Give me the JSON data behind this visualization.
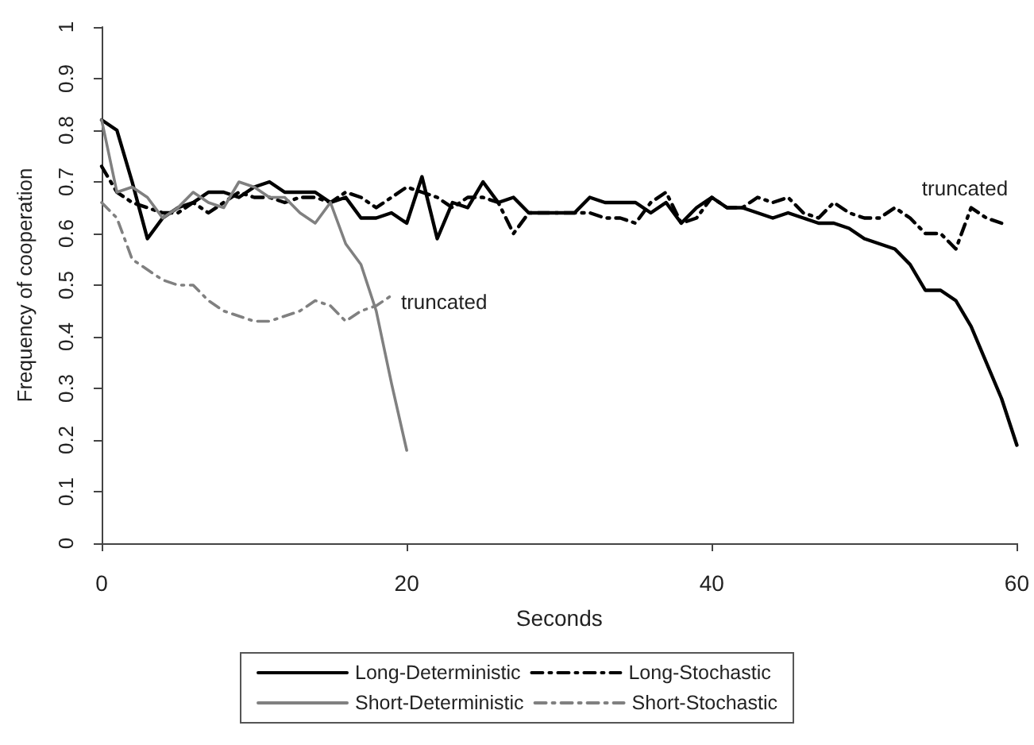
{
  "chart_data": {
    "type": "line",
    "xlabel": "Seconds",
    "ylabel": "Frequency of cooperation",
    "xlim": [
      0,
      60
    ],
    "xticks": [
      0,
      20,
      40,
      60
    ],
    "ylim": [
      0,
      1
    ],
    "yticks": [
      0,
      0.1,
      0.2,
      0.3,
      0.4,
      0.5,
      0.6,
      0.7,
      0.8,
      0.9,
      1
    ],
    "grid": false,
    "legend": "bottom",
    "marker": "none",
    "annotations": [
      "truncated",
      "truncated"
    ],
    "series": [
      {
        "name": "Long-Deterministic",
        "color": "#000000",
        "line_style": "solid",
        "x": [
          0,
          1,
          2,
          3,
          4,
          5,
          6,
          7,
          8,
          9,
          10,
          11,
          12,
          13,
          14,
          15,
          16,
          17,
          18,
          19,
          20,
          21,
          22,
          23,
          24,
          25,
          26,
          27,
          28,
          29,
          30,
          31,
          32,
          33,
          34,
          35,
          36,
          37,
          38,
          39,
          40,
          41,
          42,
          43,
          44,
          45,
          46,
          47,
          48,
          49,
          50,
          51,
          52,
          53,
          54,
          55,
          56,
          57,
          58,
          59,
          60
        ],
        "values": [
          0.82,
          0.8,
          0.7,
          0.59,
          0.63,
          0.65,
          0.66,
          0.68,
          0.68,
          0.67,
          0.69,
          0.7,
          0.68,
          0.68,
          0.68,
          0.66,
          0.67,
          0.63,
          0.63,
          0.64,
          0.62,
          0.71,
          0.59,
          0.66,
          0.65,
          0.7,
          0.66,
          0.67,
          0.64,
          0.64,
          0.64,
          0.64,
          0.67,
          0.66,
          0.66,
          0.66,
          0.64,
          0.66,
          0.62,
          0.65,
          0.67,
          0.65,
          0.65,
          0.64,
          0.63,
          0.64,
          0.63,
          0.62,
          0.62,
          0.61,
          0.59,
          0.58,
          0.57,
          0.54,
          0.49,
          0.49,
          0.47,
          0.42,
          0.35,
          0.28,
          0.19
        ]
      },
      {
        "name": "Long-Stochastic",
        "color": "#000000",
        "line_style": "dashed",
        "x": [
          0,
          1,
          2,
          3,
          4,
          5,
          6,
          7,
          8,
          9,
          10,
          11,
          12,
          13,
          14,
          15,
          16,
          17,
          18,
          19,
          20,
          21,
          22,
          23,
          24,
          25,
          26,
          27,
          28,
          29,
          30,
          31,
          32,
          33,
          34,
          35,
          36,
          37,
          38,
          39,
          40,
          41,
          42,
          43,
          44,
          45,
          46,
          47,
          48,
          49,
          50,
          51,
          52,
          53,
          54,
          55,
          56,
          57,
          58,
          59
        ],
        "values": [
          0.73,
          0.68,
          0.66,
          0.65,
          0.64,
          0.64,
          0.66,
          0.64,
          0.66,
          0.68,
          0.67,
          0.67,
          0.66,
          0.67,
          0.67,
          0.66,
          0.68,
          0.67,
          0.65,
          0.67,
          0.69,
          0.68,
          0.67,
          0.65,
          0.67,
          0.67,
          0.66,
          0.6,
          0.64,
          0.64,
          0.64,
          0.64,
          0.64,
          0.63,
          0.63,
          0.62,
          0.66,
          0.68,
          0.62,
          0.63,
          0.67,
          0.65,
          0.65,
          0.67,
          0.66,
          0.67,
          0.64,
          0.63,
          0.66,
          0.64,
          0.63,
          0.63,
          0.65,
          0.63,
          0.6,
          0.6,
          0.57,
          0.65,
          0.63,
          0.62
        ]
      },
      {
        "name": "Short-Deterministic",
        "color": "#808080",
        "line_style": "solid",
        "x": [
          0,
          1,
          2,
          3,
          4,
          5,
          6,
          7,
          8,
          9,
          10,
          11,
          12,
          13,
          14,
          15,
          16,
          17,
          18,
          19,
          20
        ],
        "values": [
          0.82,
          0.68,
          0.69,
          0.67,
          0.63,
          0.65,
          0.68,
          0.66,
          0.65,
          0.7,
          0.69,
          0.67,
          0.67,
          0.64,
          0.62,
          0.66,
          0.58,
          0.54,
          0.45,
          0.31,
          0.18
        ]
      },
      {
        "name": "Short-Stochastic",
        "color": "#808080",
        "line_style": "dashed",
        "x": [
          0,
          1,
          2,
          3,
          4,
          5,
          6,
          7,
          8,
          9,
          10,
          11,
          12,
          13,
          14,
          15,
          16,
          17,
          18,
          19
        ],
        "values": [
          0.66,
          0.63,
          0.55,
          0.53,
          0.51,
          0.5,
          0.5,
          0.47,
          0.45,
          0.44,
          0.43,
          0.43,
          0.44,
          0.45,
          0.47,
          0.46,
          0.43,
          0.45,
          0.46,
          0.48
        ]
      }
    ]
  }
}
